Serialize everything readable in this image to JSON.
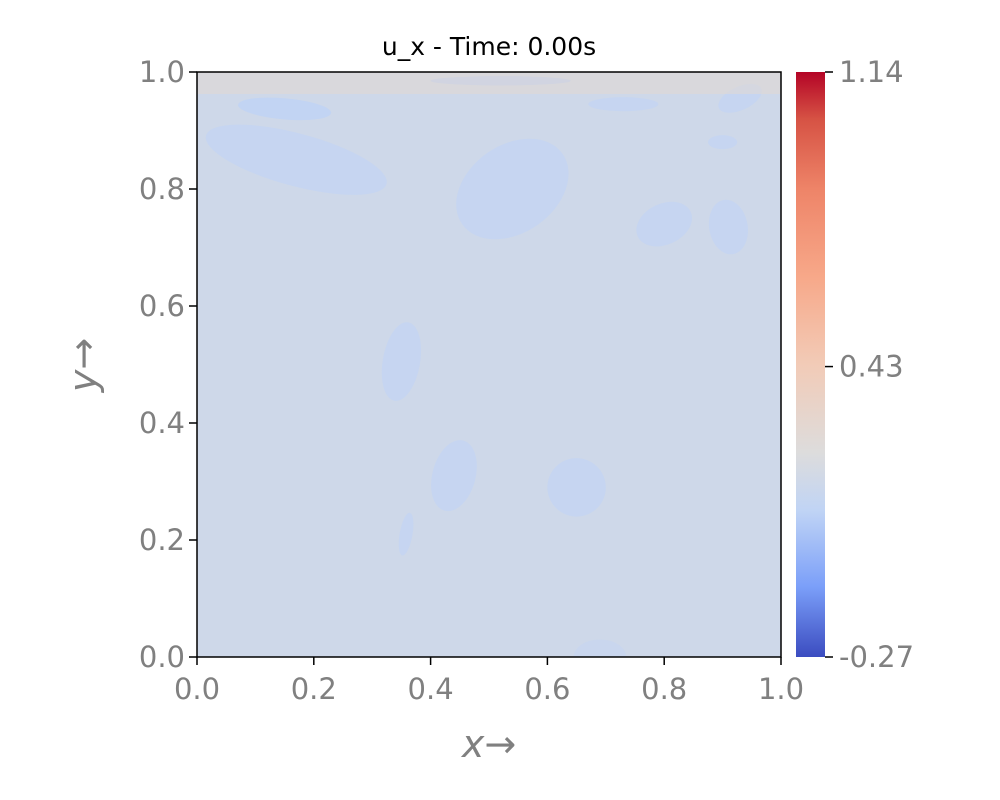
{
  "chart_data": {
    "type": "heatmap",
    "title": "u_x - Time: 0.00s",
    "xlabel": "x→",
    "ylabel": "y→",
    "xlim": [
      0.0,
      1.0
    ],
    "ylim": [
      0.0,
      1.0
    ],
    "x_ticks": [
      "0.0",
      "0.2",
      "0.4",
      "0.6",
      "0.8",
      "1.0"
    ],
    "y_ticks": [
      "0.0",
      "0.2",
      "0.4",
      "0.6",
      "0.8",
      "1.0"
    ],
    "colorbar": {
      "min": -0.27,
      "max": 1.14,
      "ticks": [
        "1.14",
        "0.43",
        "-0.27"
      ],
      "tick_values": [
        1.14,
        0.43,
        -0.27
      ],
      "colormap": "coolwarm"
    },
    "background_value": 0.15,
    "grid": false,
    "features": [
      {
        "x": 0.15,
        "y": 0.937,
        "rx": 0.08,
        "ry": 0.018,
        "angle": -5,
        "value": 0.08
      },
      {
        "x": 0.52,
        "y": 0.985,
        "rx": 0.12,
        "ry": 0.008,
        "angle": 0,
        "value": 0.06
      },
      {
        "x": 0.93,
        "y": 0.955,
        "rx": 0.04,
        "ry": 0.02,
        "angle": 25,
        "value": 0.1
      },
      {
        "x": 0.73,
        "y": 0.945,
        "rx": 0.06,
        "ry": 0.012,
        "angle": 0,
        "value": 0.1
      },
      {
        "x": 0.17,
        "y": 0.85,
        "rx": 0.16,
        "ry": 0.045,
        "angle": -15,
        "value": 0.1
      },
      {
        "x": 0.54,
        "y": 0.8,
        "rx": 0.105,
        "ry": 0.075,
        "angle": 35,
        "value": 0.1
      },
      {
        "x": 0.8,
        "y": 0.74,
        "rx": 0.05,
        "ry": 0.035,
        "angle": 25,
        "value": 0.1
      },
      {
        "x": 0.91,
        "y": 0.735,
        "rx": 0.033,
        "ry": 0.047,
        "angle": 10,
        "value": 0.1
      },
      {
        "x": 0.9,
        "y": 0.88,
        "rx": 0.025,
        "ry": 0.012,
        "angle": 0,
        "value": 0.1
      },
      {
        "x": 0.35,
        "y": 0.505,
        "rx": 0.032,
        "ry": 0.068,
        "angle": -10,
        "value": 0.1
      },
      {
        "x": 0.44,
        "y": 0.31,
        "rx": 0.037,
        "ry": 0.062,
        "angle": -15,
        "value": 0.1
      },
      {
        "x": 0.65,
        "y": 0.29,
        "rx": 0.05,
        "ry": 0.05,
        "angle": 35,
        "value": 0.1
      },
      {
        "x": 0.358,
        "y": 0.21,
        "rx": 0.011,
        "ry": 0.037,
        "angle": -10,
        "value": 0.1
      },
      {
        "x": 0.69,
        "y": 0.0,
        "rx": 0.045,
        "ry": 0.03,
        "angle": 0,
        "value": 0.12
      }
    ]
  }
}
